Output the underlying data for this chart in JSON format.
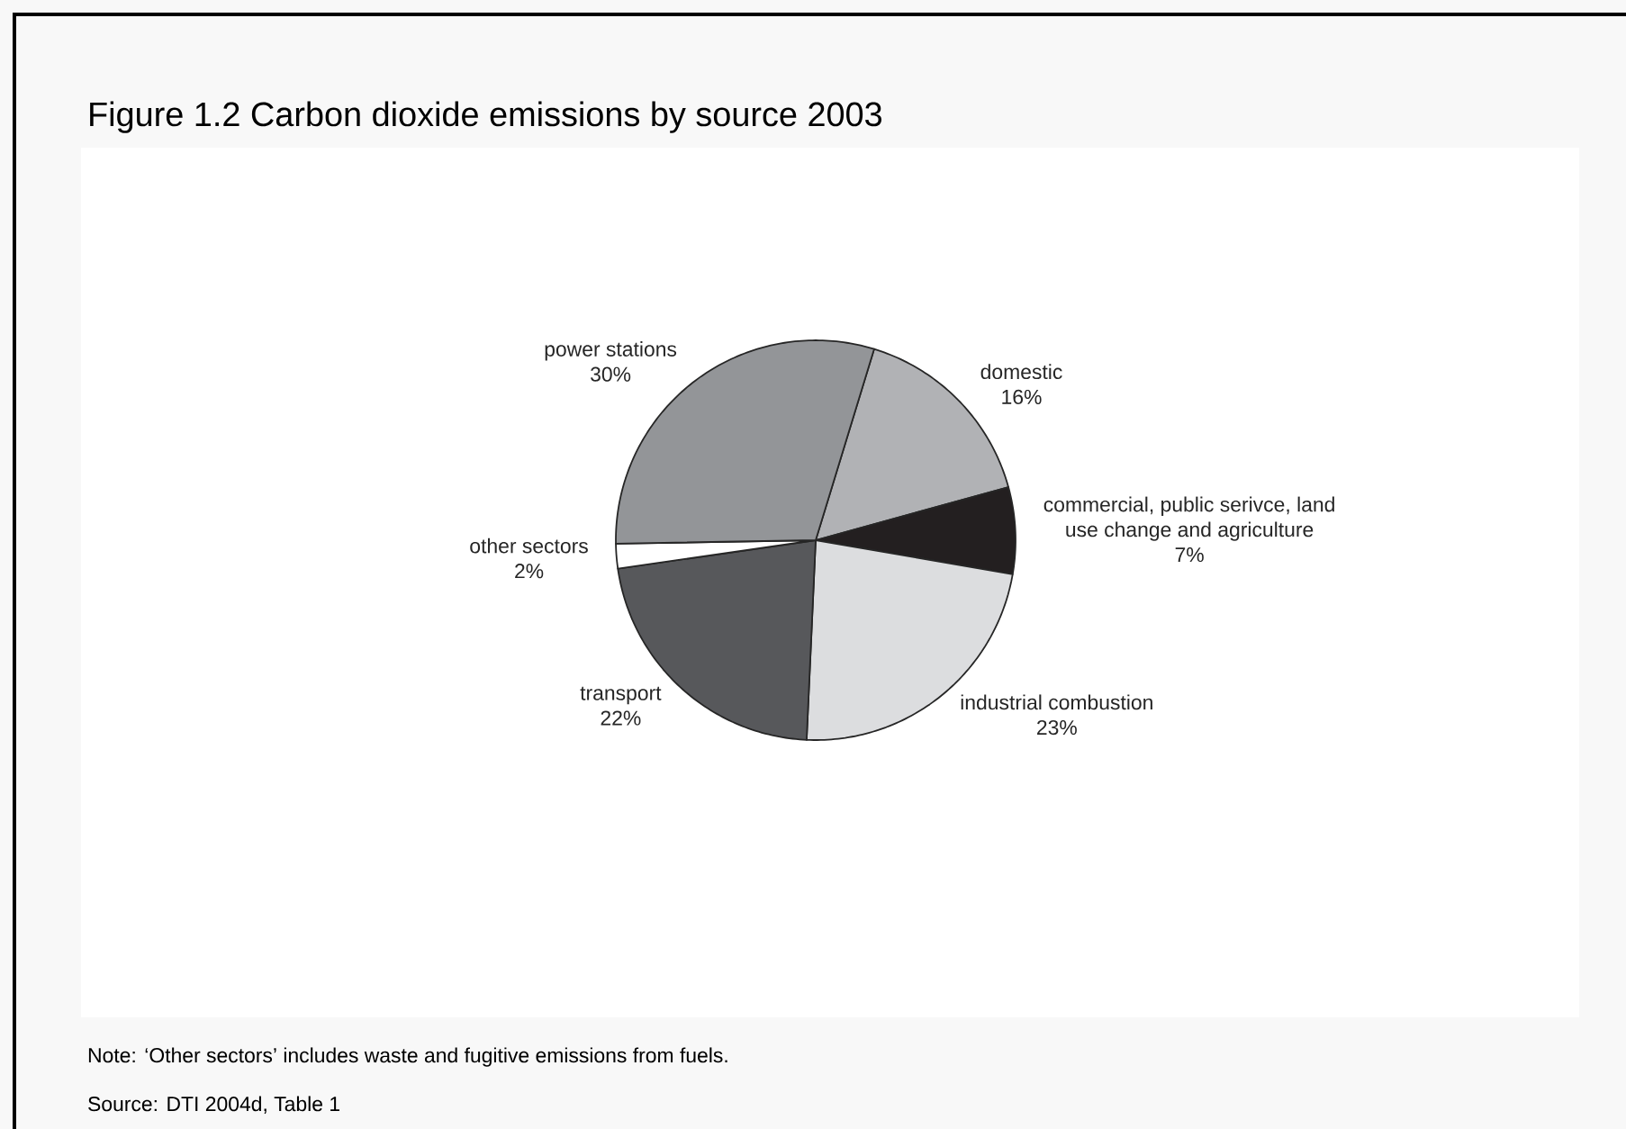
{
  "chart_data": {
    "type": "pie",
    "title": "Figure 1.2 Carbon dioxide emissions by source 2003",
    "categories": [
      "domestic",
      "commercial, public serivce, land use change and agriculture",
      "industrial combustion",
      "transport",
      "other sectors",
      "power stations"
    ],
    "values": [
      16,
      7,
      23,
      22,
      2,
      30
    ],
    "value_labels": [
      "16%",
      "7%",
      "23%",
      "22%",
      "2%",
      "30%"
    ],
    "colors": [
      "#b1b2b5",
      "#231f20",
      "#dcdddf",
      "#57585b",
      "#ffffff",
      "#939598"
    ],
    "annotations": [
      "Note:   ‘Other sectors’ includes waste and fugitive emissions from fuels.",
      "Source:   DTI 2004d, Table 1"
    ]
  }
}
